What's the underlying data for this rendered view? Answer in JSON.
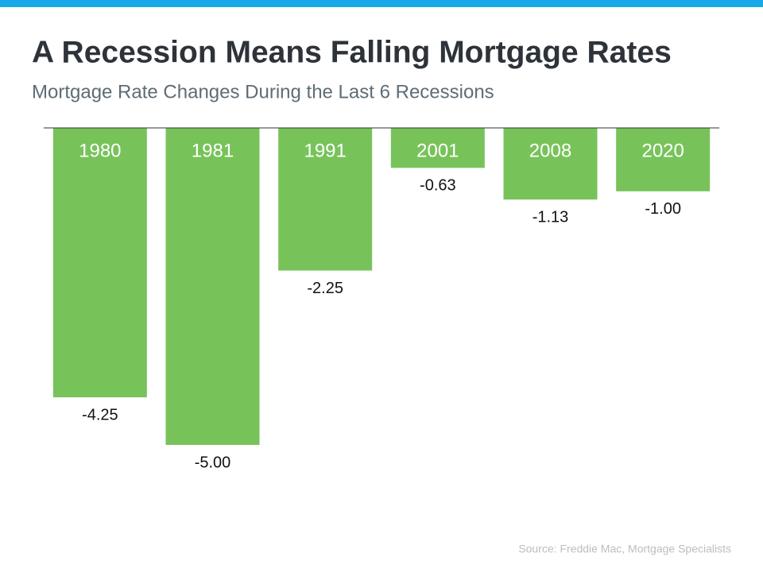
{
  "chart_data": {
    "type": "bar",
    "title": "A Recession Means Falling Mortgage Rates",
    "subtitle": "Mortgage Rate Changes During the Last 6 Recessions",
    "source": "Source: Freddie Mac, Mortgage Specialists",
    "categories": [
      "1980",
      "1981",
      "1991",
      "2001",
      "2008",
      "2020"
    ],
    "values": [
      -4.25,
      -5.0,
      -2.25,
      -0.63,
      -1.13,
      -1.0
    ],
    "value_labels": [
      "-4.25",
      "-5.00",
      "-2.25",
      "-0.63",
      "-1.13",
      "-1.00"
    ],
    "color": "#77c35a",
    "ylim": [
      -5,
      0
    ]
  }
}
